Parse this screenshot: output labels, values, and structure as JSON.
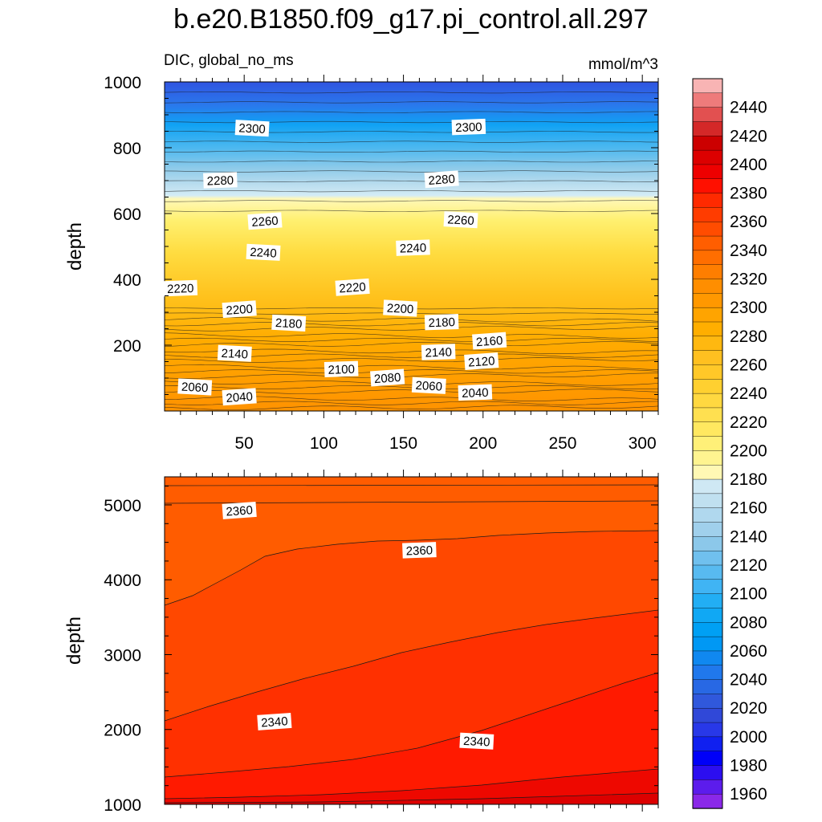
{
  "title": "b.e20.B1850.f09_g17.pi_control.all.297",
  "subtitle_left": "DIC, global_no_ms",
  "subtitle_right": "mmol/m^3",
  "colorbar": {
    "tick_labels": [
      "2440",
      "2420",
      "2400",
      "2380",
      "2360",
      "2340",
      "2320",
      "2300",
      "2280",
      "2260",
      "2240",
      "2220",
      "2200",
      "2180",
      "2160",
      "2140",
      "2120",
      "2100",
      "2080",
      "2060",
      "2040",
      "2020",
      "2000",
      "1980",
      "1960"
    ],
    "colors_top_to_bottom": [
      "#f8b4b4",
      "#ee7b7b",
      "#e25050",
      "#d42828",
      "#cc0000",
      "#dc0000",
      "#ee0000",
      "#ff1000",
      "#ff2a00",
      "#ff3c00",
      "#ff4c00",
      "#ff5e00",
      "#ff6e00",
      "#ff7e00",
      "#ff8e00",
      "#ff9800",
      "#ffa400",
      "#ffae00",
      "#ffb810",
      "#ffc020",
      "#ffc828",
      "#ffd030",
      "#ffd840",
      "#ffe050",
      "#ffe860",
      "#fff078",
      "#fff490",
      "#fff8b4",
      "#cfe8f4",
      "#c0e0f0",
      "#b0d8ee",
      "#a0d0ec",
      "#8cc8ea",
      "#70c0ee",
      "#58baf0",
      "#40b4f4",
      "#22aef4",
      "#10a8f4",
      "#00a0f4",
      "#0098f4",
      "#1088f0",
      "#2078ec",
      "#2868e4",
      "#3058dc",
      "#3048d8",
      "#2838e8",
      "#1020f0",
      "#0000f8",
      "#2c0ef0",
      "#5c1cec",
      "#8a28e8"
    ]
  },
  "chart_data": [
    {
      "type": "contour",
      "panel": "top",
      "ylabel": "depth",
      "xlabel": "",
      "xlim": [
        0,
        310
      ],
      "ylim": [
        1000,
        0
      ],
      "x_ticks": [
        50,
        100,
        150,
        200,
        250,
        300
      ],
      "y_ticks": [
        200,
        400,
        600,
        800,
        1000
      ],
      "contour_labels": [
        {
          "text": "2040",
          "x": 47,
          "y": 42
        },
        {
          "text": "2060",
          "x": 19,
          "y": 72
        },
        {
          "text": "2100",
          "x": 111,
          "y": 126
        },
        {
          "text": "2080",
          "x": 140,
          "y": 100
        },
        {
          "text": "2060",
          "x": 166,
          "y": 76
        },
        {
          "text": "2040",
          "x": 195,
          "y": 55
        },
        {
          "text": "2120",
          "x": 199,
          "y": 150
        },
        {
          "text": "2140",
          "x": 44,
          "y": 174
        },
        {
          "text": "2140",
          "x": 172,
          "y": 178
        },
        {
          "text": "2160",
          "x": 204,
          "y": 212
        },
        {
          "text": "2180",
          "x": 78,
          "y": 266
        },
        {
          "text": "2180",
          "x": 174,
          "y": 269
        },
        {
          "text": "2200",
          "x": 47,
          "y": 308
        },
        {
          "text": "2200",
          "x": 148,
          "y": 311
        },
        {
          "text": "2220",
          "x": 10,
          "y": 372
        },
        {
          "text": "2220",
          "x": 118,
          "y": 375
        },
        {
          "text": "2240",
          "x": 62,
          "y": 481
        },
        {
          "text": "2240",
          "x": 156,
          "y": 495
        },
        {
          "text": "2260",
          "x": 63,
          "y": 576
        },
        {
          "text": "2260",
          "x": 186,
          "y": 580
        },
        {
          "text": "2280",
          "x": 35,
          "y": 700
        },
        {
          "text": "2280",
          "x": 174,
          "y": 703
        },
        {
          "text": "2300",
          "x": 55,
          "y": 858
        },
        {
          "text": "2300",
          "x": 191,
          "y": 862
        }
      ]
    },
    {
      "type": "contour",
      "panel": "bottom",
      "ylabel": "depth",
      "xlabel": "",
      "xlim": [
        0,
        310
      ],
      "ylim": [
        5375,
        1000
      ],
      "x_ticks": [
        50,
        100,
        150,
        200,
        250,
        300
      ],
      "y_ticks": [
        1000,
        2000,
        3000,
        4000,
        5000
      ],
      "contour_labels": [
        {
          "text": "2340",
          "x": 69,
          "y": 2100
        },
        {
          "text": "2340",
          "x": 196,
          "y": 1840
        },
        {
          "text": "2360",
          "x": 160,
          "y": 4390
        },
        {
          "text": "2360",
          "x": 47,
          "y": 4920
        }
      ]
    }
  ]
}
